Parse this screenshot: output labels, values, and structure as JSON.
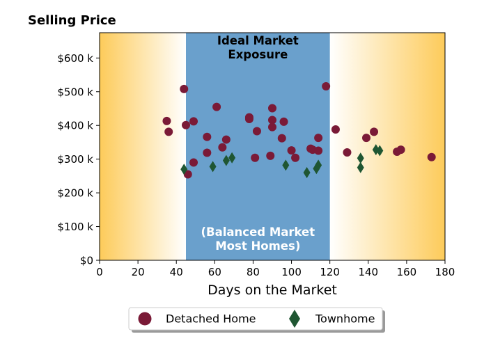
{
  "chart_data": {
    "type": "scatter",
    "title": "Selling Price",
    "xlabel": "Days on the Market",
    "ylabel": "",
    "xlim": [
      0,
      180
    ],
    "ylim": [
      0,
      675000
    ],
    "x_ticks": [
      0,
      20,
      40,
      60,
      80,
      100,
      120,
      140,
      160,
      180
    ],
    "x_tick_labels": [
      "0",
      "20",
      "40",
      "60",
      "80",
      "100",
      "120",
      "140",
      "160",
      "180"
    ],
    "y_ticks": [
      0,
      100000,
      200000,
      300000,
      400000,
      500000,
      600000
    ],
    "y_tick_labels": [
      "$0",
      "$100 k",
      "$200 k",
      "$300 k",
      "$400 k",
      "$500 k",
      "$600 k"
    ],
    "grid": false,
    "legend_position": "bottom-center",
    "band": {
      "x_range": [
        45,
        120
      ],
      "color": "#6aa0cc",
      "top_label": "Ideal Market Exposure",
      "top_label_lines": [
        "Ideal Market",
        "Exposure"
      ],
      "bottom_label": "(Balanced Market Most Homes)",
      "bottom_label_lines": [
        "(Balanced Market",
        "Most Homes)"
      ]
    },
    "background_gradient": {
      "edge_color": "#fdcb5a",
      "center_color": "#ffffff"
    },
    "series": [
      {
        "name": "Detached Home",
        "marker": "circle",
        "color": "#7a1a37",
        "points": [
          {
            "x": 35,
            "y": 413000
          },
          {
            "x": 36,
            "y": 381000
          },
          {
            "x": 44,
            "y": 508000
          },
          {
            "x": 45,
            "y": 401000
          },
          {
            "x": 46,
            "y": 255000
          },
          {
            "x": 49,
            "y": 412000
          },
          {
            "x": 49,
            "y": 290000
          },
          {
            "x": 56,
            "y": 366000
          },
          {
            "x": 56,
            "y": 319000
          },
          {
            "x": 61,
            "y": 455000
          },
          {
            "x": 64,
            "y": 335000
          },
          {
            "x": 66,
            "y": 358000
          },
          {
            "x": 78,
            "y": 424000
          },
          {
            "x": 78,
            "y": 419000
          },
          {
            "x": 81,
            "y": 304000
          },
          {
            "x": 82,
            "y": 383000
          },
          {
            "x": 89,
            "y": 310000
          },
          {
            "x": 90,
            "y": 451000
          },
          {
            "x": 90,
            "y": 416000
          },
          {
            "x": 90,
            "y": 395000
          },
          {
            "x": 95,
            "y": 362000
          },
          {
            "x": 96,
            "y": 411000
          },
          {
            "x": 100,
            "y": 326000
          },
          {
            "x": 102,
            "y": 304000
          },
          {
            "x": 110,
            "y": 331000
          },
          {
            "x": 111,
            "y": 328000
          },
          {
            "x": 114,
            "y": 363000
          },
          {
            "x": 114,
            "y": 325000
          },
          {
            "x": 118,
            "y": 516000
          },
          {
            "x": 123,
            "y": 388000
          },
          {
            "x": 129,
            "y": 320000
          },
          {
            "x": 139,
            "y": 363000
          },
          {
            "x": 143,
            "y": 381000
          },
          {
            "x": 155,
            "y": 322000
          },
          {
            "x": 157,
            "y": 328000
          },
          {
            "x": 173,
            "y": 306000
          }
        ]
      },
      {
        "name": "Townhome",
        "marker": "diamond",
        "color": "#1f5632",
        "points": [
          {
            "x": 44,
            "y": 270000
          },
          {
            "x": 59,
            "y": 278000
          },
          {
            "x": 66,
            "y": 296000
          },
          {
            "x": 69,
            "y": 304000
          },
          {
            "x": 97,
            "y": 282000
          },
          {
            "x": 108,
            "y": 260000
          },
          {
            "x": 113,
            "y": 272000
          },
          {
            "x": 114,
            "y": 282000
          },
          {
            "x": 136,
            "y": 275000
          },
          {
            "x": 136,
            "y": 303000
          },
          {
            "x": 144,
            "y": 328000
          },
          {
            "x": 146,
            "y": 325000
          }
        ]
      }
    ]
  }
}
